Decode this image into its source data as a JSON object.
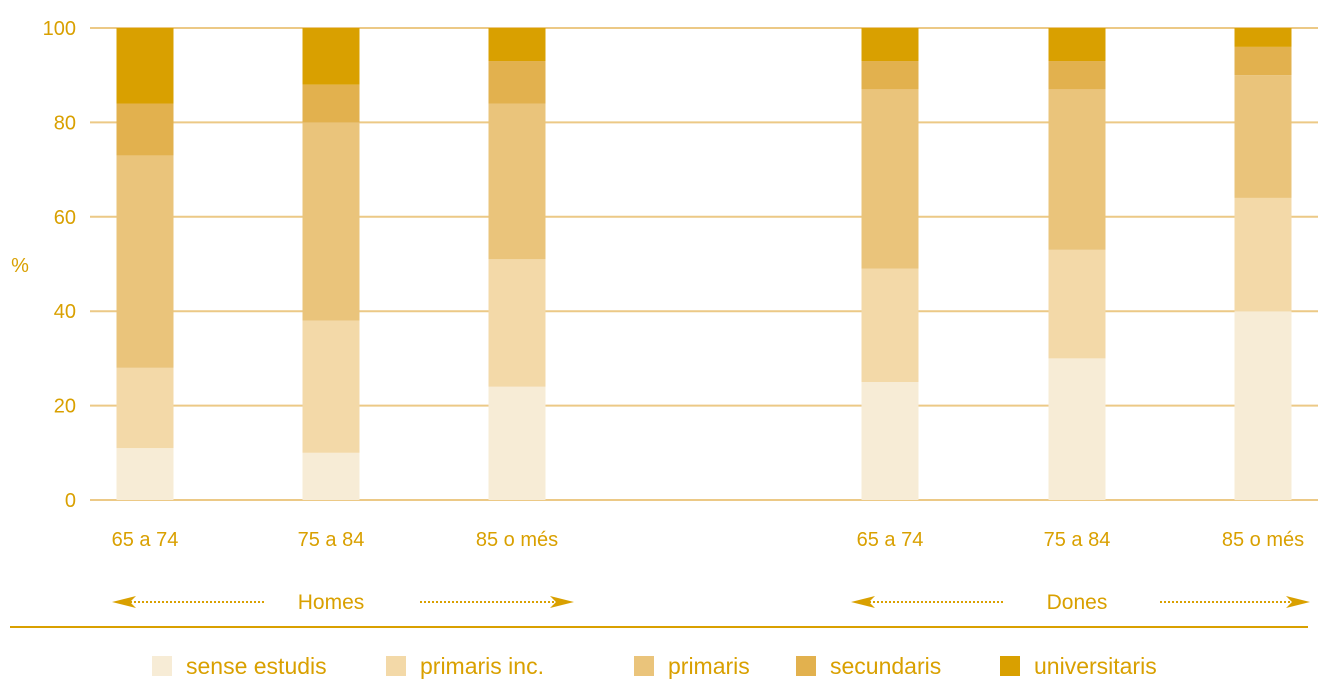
{
  "chart_data": {
    "type": "bar",
    "stacked": true,
    "ylabel": "%",
    "ylim": [
      0,
      100
    ],
    "yticks": [
      0,
      20,
      40,
      60,
      80,
      100
    ],
    "grid": true,
    "legend_position": "bottom",
    "categories": [
      "65 a 74",
      "75 a 84",
      "85 o més",
      "65 a 74",
      "75 a 84",
      "85 o més"
    ],
    "groups": [
      {
        "label": "Homes",
        "categories": [
          0,
          1,
          2
        ]
      },
      {
        "label": "Dones",
        "categories": [
          3,
          4,
          5
        ]
      }
    ],
    "series": [
      {
        "name": "sense estudis",
        "color": "#f7ecd6",
        "values": [
          11,
          10,
          24,
          25,
          30,
          40
        ]
      },
      {
        "name": "primaris inc.",
        "color": "#f3d9a8",
        "values": [
          17,
          28,
          27,
          24,
          23,
          24
        ]
      },
      {
        "name": "primaris",
        "color": "#eac47b",
        "values": [
          45,
          42,
          33,
          38,
          34,
          26
        ]
      },
      {
        "name": "secundaris",
        "color": "#e2b14e",
        "values": [
          11,
          8,
          9,
          6,
          6,
          6
        ]
      },
      {
        "name": "universitaris",
        "color": "#d9a000",
        "values": [
          16,
          12,
          7,
          7,
          7,
          4
        ]
      }
    ],
    "text_color": "#d9a000",
    "grid_color": "#ecc986"
  }
}
